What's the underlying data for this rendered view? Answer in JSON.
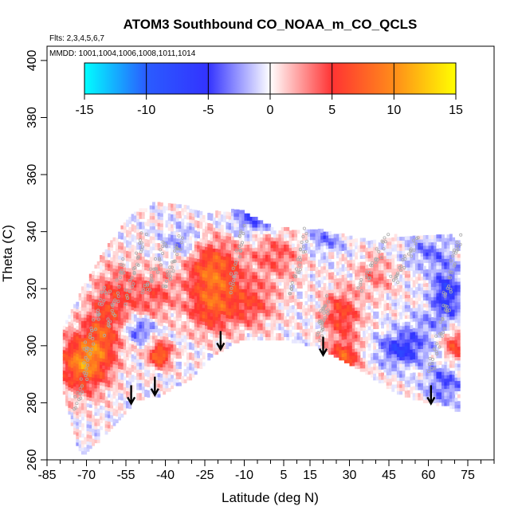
{
  "chart_data": {
    "type": "heatmap",
    "title": "ATOM3 Southbound CO_NOAA_m_CO_QCLS",
    "flights_note": "Flts: 2,3,4,5,6,7",
    "dates_note": "MMDD: 1001,1004,1006,1008,1011,1014",
    "xlabel": "Latitude (deg N)",
    "ylabel": "Theta (C)",
    "xlim": [
      -85,
      85
    ],
    "ylim": [
      260,
      405
    ],
    "x_ticks": [
      -85,
      -70,
      -55,
      -40,
      -25,
      -10,
      5,
      15,
      30,
      45,
      60,
      75
    ],
    "x_tick_labels": [
      "-85",
      "-70",
      "-55",
      "-40",
      "-25",
      "-10",
      "5",
      "15",
      "30",
      "45",
      "60",
      "75"
    ],
    "y_ticks": [
      260,
      280,
      300,
      320,
      340,
      360,
      380,
      400
    ],
    "y_tick_labels": [
      "260",
      "280",
      "300",
      "320",
      "340",
      "360",
      "380",
      "400"
    ],
    "colorbar": {
      "min": -15,
      "max": 15,
      "ticks": [
        -15,
        -10,
        -5,
        0,
        5,
        10,
        15
      ],
      "tick_labels": [
        "-15",
        "-10",
        "-5",
        "0",
        "5",
        "10",
        "15"
      ],
      "colors": [
        "#00ffff",
        "#2a5cff",
        "#3333ff",
        "#ffffff",
        "#ff3333",
        "#ff8c1a",
        "#ffff00"
      ]
    },
    "envelope": {
      "lat": [
        -79,
        -72,
        -62,
        -52,
        -42,
        -32,
        -22,
        -12,
        -2,
        8,
        18,
        28,
        38,
        48,
        58,
        68,
        72
      ],
      "theta_bottom": [
        287,
        262,
        270,
        281,
        283,
        288,
        297,
        302,
        303,
        302,
        300,
        295,
        290,
        284,
        281,
        279,
        277
      ],
      "theta_top": [
        304,
        318,
        334,
        346,
        350,
        348,
        346,
        347,
        342,
        340,
        340,
        338,
        336,
        338,
        338,
        338,
        336
      ]
    },
    "blobs": [
      {
        "lat": -72,
        "theta": 294,
        "sx": 6,
        "sy": 7,
        "amp": 9
      },
      {
        "lat": -64,
        "theta": 303,
        "sx": 5,
        "sy": 9,
        "amp": 6
      },
      {
        "lat": -58,
        "theta": 318,
        "sx": 6,
        "sy": 8,
        "amp": 4
      },
      {
        "lat": -42,
        "theta": 297,
        "sx": 3,
        "sy": 3,
        "amp": 9
      },
      {
        "lat": -44,
        "theta": 318,
        "sx": 6,
        "sy": 6,
        "amp": 4
      },
      {
        "lat": -22,
        "theta": 327,
        "sx": 7,
        "sy": 7,
        "amp": 8
      },
      {
        "lat": -23,
        "theta": 313,
        "sx": 6,
        "sy": 6,
        "amp": 6
      },
      {
        "lat": -8,
        "theta": 315,
        "sx": 7,
        "sy": 6,
        "amp": 5
      },
      {
        "lat": 2,
        "theta": 332,
        "sx": 7,
        "sy": 6,
        "amp": 4
      },
      {
        "lat": 27,
        "theta": 311,
        "sx": 5,
        "sy": 6,
        "amp": 6
      },
      {
        "lat": 28,
        "theta": 296,
        "sx": 4,
        "sy": 4,
        "amp": 7
      },
      {
        "lat": 40,
        "theta": 325,
        "sx": 5,
        "sy": 5,
        "amp": 3
      },
      {
        "lat": 70,
        "theta": 300,
        "sx": 3,
        "sy": 4,
        "amp": 6
      },
      {
        "lat": -50,
        "theta": 306,
        "sx": 4,
        "sy": 3,
        "amp": -5
      },
      {
        "lat": -33,
        "theta": 336,
        "sx": 5,
        "sy": 4,
        "amp": -3
      },
      {
        "lat": -7,
        "theta": 344,
        "sx": 6,
        "sy": 4,
        "amp": -4
      },
      {
        "lat": 20,
        "theta": 337,
        "sx": 6,
        "sy": 3,
        "amp": -3
      },
      {
        "lat": 50,
        "theta": 299,
        "sx": 6,
        "sy": 4,
        "amp": -6
      },
      {
        "lat": 67,
        "theta": 318,
        "sx": 4,
        "sy": 7,
        "amp": -6
      },
      {
        "lat": 60,
        "theta": 333,
        "sx": 6,
        "sy": 4,
        "amp": -3
      },
      {
        "lat": 66,
        "theta": 287,
        "sx": 5,
        "sy": 5,
        "amp": -4
      },
      {
        "lat": 58,
        "theta": 307,
        "sx": 5,
        "sy": 4,
        "amp": -2
      }
    ],
    "sample_tracks": [
      {
        "lat0": -74,
        "lat1": -68,
        "th0": 278,
        "th1": 300
      },
      {
        "lat0": -70,
        "lat1": -62,
        "th0": 300,
        "th1": 320
      },
      {
        "lat0": -62,
        "lat1": -55,
        "th0": 305,
        "th1": 330
      },
      {
        "lat0": -55,
        "lat1": -48,
        "th0": 315,
        "th1": 340
      },
      {
        "lat0": -48,
        "lat1": -40,
        "th0": 318,
        "th1": 336
      },
      {
        "lat0": -40,
        "lat1": -34,
        "th0": 320,
        "th1": 338
      },
      {
        "lat0": -15,
        "lat1": -10,
        "th0": 320,
        "th1": 342
      },
      {
        "lat0": 8,
        "lat1": 14,
        "th0": 318,
        "th1": 340
      },
      {
        "lat0": 18,
        "lat1": 22,
        "th0": 303,
        "th1": 316
      },
      {
        "lat0": 34,
        "lat1": 44,
        "th0": 320,
        "th1": 338
      },
      {
        "lat0": 46,
        "lat1": 56,
        "th0": 322,
        "th1": 337
      },
      {
        "lat0": 60,
        "lat1": 68,
        "th0": 290,
        "th1": 315
      },
      {
        "lat0": 66,
        "lat1": 72,
        "th0": 315,
        "th1": 338
      }
    ],
    "arrows": [
      {
        "lat": -53,
        "theta": 280
      },
      {
        "lat": -44,
        "theta": 283
      },
      {
        "lat": -19,
        "theta": 299
      },
      {
        "lat": 20,
        "theta": 297
      },
      {
        "lat": 61,
        "theta": 280
      }
    ]
  }
}
